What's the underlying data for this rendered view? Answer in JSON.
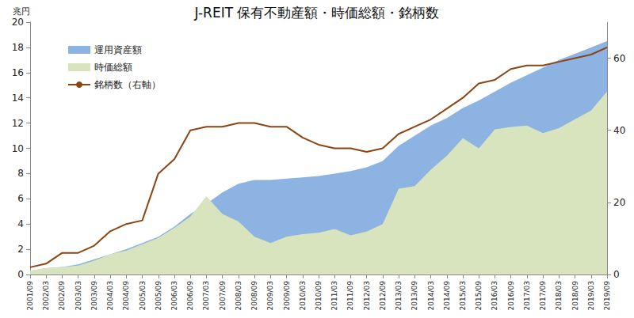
{
  "chart_data": {
    "type": "line",
    "title": "J-REIT 保有不動産額・時価総額・銘柄数",
    "y_label": "兆円",
    "categories": [
      "2001/09",
      "2002/03",
      "2002/09",
      "2003/03",
      "2003/09",
      "2004/03",
      "2004/09",
      "2005/03",
      "2005/09",
      "2006/03",
      "2006/09",
      "2007/03",
      "2007/09",
      "2008/03",
      "2008/09",
      "2009/03",
      "2009/09",
      "2010/03",
      "2010/09",
      "2011/03",
      "2011/09",
      "2012/03",
      "2012/09",
      "2013/03",
      "2013/09",
      "2014/03",
      "2014/09",
      "2015/03",
      "2015/09",
      "2016/03",
      "2016/09",
      "2017/03",
      "2017/09",
      "2018/03",
      "2018/09",
      "2019/03",
      "2019/09"
    ],
    "series": [
      {
        "name": "運用資産額",
        "type": "area",
        "color": "#8db3e2",
        "values": [
          0.3,
          0.5,
          0.6,
          0.8,
          1.2,
          1.6,
          2.0,
          2.5,
          3.0,
          3.8,
          4.8,
          5.6,
          6.5,
          7.2,
          7.5,
          7.5,
          7.6,
          7.7,
          7.8,
          8.0,
          8.2,
          8.5,
          9.0,
          10.2,
          11.0,
          11.8,
          12.4,
          13.2,
          13.8,
          14.5,
          15.2,
          15.8,
          16.4,
          17.0,
          17.5,
          18.0,
          18.5
        ]
      },
      {
        "name": "時価総額",
        "type": "area",
        "color": "#d7e4bd",
        "values": [
          0.3,
          0.5,
          0.6,
          0.7,
          1.1,
          1.6,
          1.9,
          2.4,
          2.9,
          3.7,
          4.6,
          6.2,
          4.8,
          4.2,
          3.0,
          2.5,
          3.0,
          3.2,
          3.3,
          3.6,
          3.1,
          3.4,
          4.0,
          6.8,
          7.0,
          8.3,
          9.4,
          10.8,
          10.0,
          11.5,
          11.7,
          11.8,
          11.2,
          11.6,
          12.3,
          13.0,
          14.5
        ]
      },
      {
        "name": "銘柄数（右軸）",
        "type": "line",
        "color": "#8b4513",
        "axis": "y2",
        "values": [
          2,
          3,
          6,
          6,
          8,
          12,
          14,
          15,
          28,
          32,
          40,
          41,
          41,
          42,
          42,
          41,
          41,
          38,
          36,
          35,
          35,
          34,
          35,
          39,
          41,
          43,
          46,
          49,
          53,
          54,
          57,
          58,
          58,
          59,
          60,
          61,
          63
        ]
      }
    ],
    "ylim": [
      0,
      20
    ],
    "yticks": [
      0,
      2,
      4,
      6,
      8,
      10,
      12,
      14,
      16,
      18,
      20
    ],
    "y2lim": [
      0,
      70
    ],
    "y2ticks": [
      0,
      20,
      40,
      60
    ],
    "grid": false,
    "legend": "top-left"
  }
}
